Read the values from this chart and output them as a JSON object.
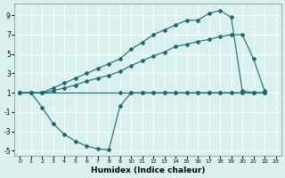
{
  "xlabel": "Humidex (Indice chaleur)",
  "xlim": [
    -0.5,
    23.5
  ],
  "ylim": [
    -5.5,
    10.2
  ],
  "yticks": [
    -5,
    -3,
    -1,
    1,
    3,
    5,
    7,
    9
  ],
  "xticks": [
    0,
    1,
    2,
    3,
    4,
    5,
    6,
    7,
    8,
    9,
    10,
    11,
    12,
    13,
    14,
    15,
    16,
    17,
    18,
    19,
    20,
    21,
    22,
    23
  ],
  "bg_color": "#d9f0ef",
  "line_color": "#1a6b6b",
  "lines": [
    {
      "x": [
        0,
        1,
        2,
        9,
        10,
        11,
        12,
        13,
        14,
        15,
        16,
        17,
        18,
        19,
        20,
        21,
        22
      ],
      "y": [
        1,
        1,
        1,
        1,
        1,
        1,
        1,
        1,
        1,
        1,
        1,
        1,
        1,
        1,
        1,
        1,
        1
      ]
    },
    {
      "x": [
        0,
        1,
        2,
        3,
        4,
        5,
        6,
        7,
        8,
        9,
        10,
        11,
        12,
        13,
        14,
        15,
        16,
        17,
        18,
        19,
        20,
        21,
        22
      ],
      "y": [
        1,
        1,
        -0.5,
        -2.2,
        -3.3,
        -4.0,
        -4.5,
        -4.8,
        -4.9,
        -0.4,
        1,
        1,
        1,
        1,
        1,
        1,
        1,
        1,
        1,
        1,
        1,
        1,
        1
      ]
    },
    {
      "x": [
        0,
        1,
        2,
        3,
        4,
        5,
        6,
        7,
        8,
        9,
        10,
        11,
        12,
        13,
        14,
        15,
        16,
        17,
        18,
        19,
        20,
        21,
        22
      ],
      "y": [
        1,
        1,
        1,
        1.5,
        2.0,
        2.5,
        3.0,
        3.5,
        4.0,
        4.5,
        5.5,
        6.2,
        7.0,
        7.5,
        8.0,
        8.5,
        8.5,
        9.2,
        9.5,
        8.8,
        1.2,
        1.0,
        1.0
      ]
    },
    {
      "x": [
        0,
        1,
        2,
        3,
        4,
        5,
        6,
        7,
        8,
        9,
        10,
        11,
        12,
        13,
        14,
        15,
        16,
        17,
        18,
        19,
        20,
        21,
        22
      ],
      "y": [
        1,
        1,
        1,
        1.2,
        1.5,
        1.8,
        2.2,
        2.5,
        2.8,
        3.2,
        3.8,
        4.3,
        4.8,
        5.2,
        5.8,
        6.0,
        6.3,
        6.5,
        6.8,
        7.0,
        7.0,
        4.5,
        1.2
      ]
    }
  ]
}
